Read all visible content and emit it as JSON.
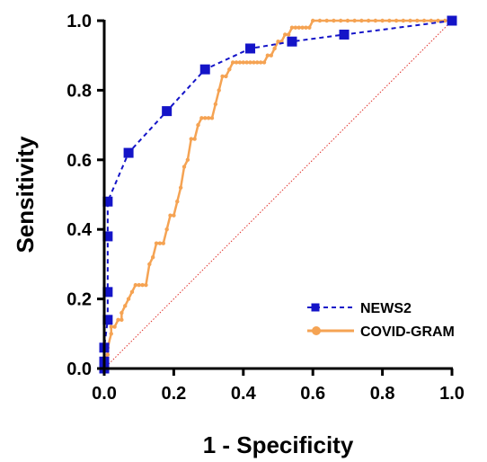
{
  "chart_data": {
    "type": "line",
    "title": "",
    "xlabel": "1 - Specificity",
    "ylabel": "Sensitivity",
    "xlim": [
      0,
      1
    ],
    "ylim": [
      0,
      1
    ],
    "x_ticks": [
      "0.0",
      "0.2",
      "0.4",
      "0.6",
      "0.8",
      "1.0"
    ],
    "y_ticks": [
      "0.0",
      "0.2",
      "0.4",
      "0.6",
      "0.8",
      "1.0"
    ],
    "grid": false,
    "legend_position": "bottom-right",
    "reference_line": {
      "from": [
        0,
        0
      ],
      "to": [
        1,
        1
      ],
      "color": "#e0302a",
      "style": "dotted"
    },
    "series": [
      {
        "name": "NEWS2",
        "color": "#1414c8",
        "line_style": "dashed",
        "marker": "square",
        "x": [
          0.0,
          0.0,
          0.0,
          0.01,
          0.01,
          0.01,
          0.01,
          0.07,
          0.18,
          0.29,
          0.42,
          0.54,
          0.69,
          1.0
        ],
        "y": [
          0.0,
          0.02,
          0.06,
          0.14,
          0.22,
          0.38,
          0.48,
          0.62,
          0.74,
          0.86,
          0.92,
          0.94,
          0.96,
          1.0
        ]
      },
      {
        "name": "COVID-GRAM",
        "color": "#f5a353",
        "line_style": "solid",
        "marker": "circle",
        "x": [
          0.0,
          0.0,
          0.01,
          0.01,
          0.02,
          0.02,
          0.03,
          0.04,
          0.05,
          0.05,
          0.06,
          0.07,
          0.08,
          0.09,
          0.1,
          0.11,
          0.12,
          0.13,
          0.14,
          0.15,
          0.16,
          0.17,
          0.18,
          0.19,
          0.2,
          0.21,
          0.22,
          0.23,
          0.24,
          0.25,
          0.26,
          0.27,
          0.28,
          0.29,
          0.3,
          0.31,
          0.32,
          0.33,
          0.34,
          0.35,
          0.36,
          0.37,
          0.38,
          0.39,
          0.4,
          0.41,
          0.42,
          0.43,
          0.44,
          0.45,
          0.46,
          0.47,
          0.48,
          0.49,
          0.5,
          0.51,
          0.52,
          0.53,
          0.54,
          0.55,
          0.56,
          0.57,
          0.58,
          0.59,
          0.6,
          0.62,
          0.64,
          0.66,
          0.68,
          0.7,
          0.72,
          0.74,
          0.76,
          0.78,
          0.8,
          0.82,
          0.84,
          0.86,
          0.88,
          0.9,
          0.92,
          0.94,
          0.96,
          0.98,
          1.0
        ],
        "y": [
          0.0,
          0.02,
          0.04,
          0.06,
          0.1,
          0.12,
          0.12,
          0.14,
          0.14,
          0.16,
          0.18,
          0.2,
          0.22,
          0.24,
          0.24,
          0.24,
          0.24,
          0.3,
          0.32,
          0.36,
          0.36,
          0.36,
          0.4,
          0.44,
          0.44,
          0.48,
          0.52,
          0.58,
          0.6,
          0.66,
          0.66,
          0.7,
          0.72,
          0.72,
          0.72,
          0.72,
          0.76,
          0.8,
          0.84,
          0.84,
          0.86,
          0.88,
          0.88,
          0.88,
          0.88,
          0.88,
          0.88,
          0.88,
          0.88,
          0.88,
          0.88,
          0.9,
          0.9,
          0.92,
          0.94,
          0.94,
          0.96,
          0.96,
          0.98,
          0.98,
          0.98,
          0.98,
          0.98,
          0.98,
          1.0,
          1.0,
          1.0,
          1.0,
          1.0,
          1.0,
          1.0,
          1.0,
          1.0,
          1.0,
          1.0,
          1.0,
          1.0,
          1.0,
          1.0,
          1.0,
          1.0,
          1.0,
          1.0,
          1.0,
          1.0
        ]
      }
    ]
  }
}
